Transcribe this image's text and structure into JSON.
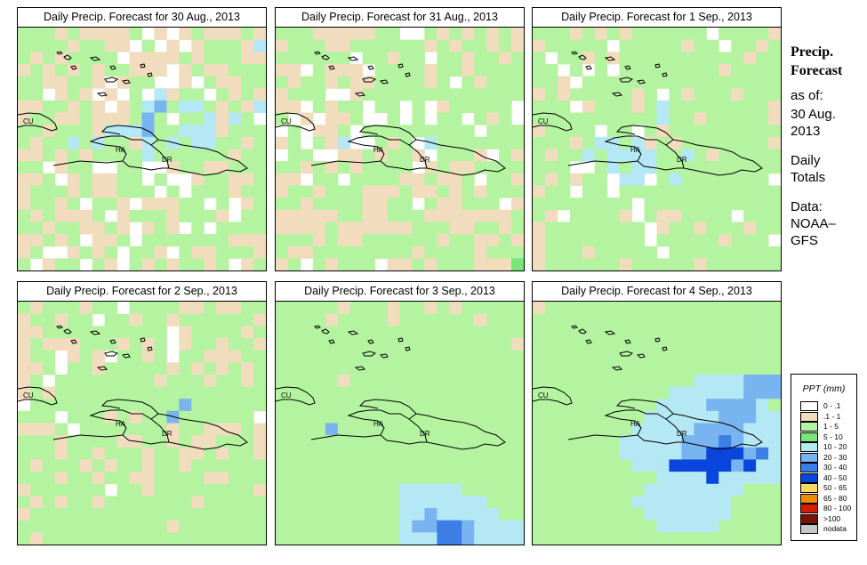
{
  "panels": [
    {
      "title": "Daily Precip. Forecast for  30 Aug., 2013"
    },
    {
      "title": "Daily Precip. Forecast for  31 Aug., 2013"
    },
    {
      "title": "Daily Precip. Forecast for  1 Sep., 2013"
    },
    {
      "title": "Daily Precip. Forecast for  2 Sep., 2013"
    },
    {
      "title": "Daily Precip. Forecast for  3 Sep., 2013"
    },
    {
      "title": "Daily Precip. Forecast for  4 Sep., 2013"
    }
  ],
  "map_labels": {
    "cuba": "CU",
    "haiti": "HA",
    "dominican_republic": "DR"
  },
  "sidebar": {
    "title_line1": "Precip.",
    "title_line2": "Forecast",
    "asof_line1": "as of:",
    "asof_line2": "30 Aug.",
    "asof_line3": "2013",
    "totals_line1": "Daily",
    "totals_line2": "Totals",
    "data_line1": "Data:",
    "data_line2": "NOAA–",
    "data_line3": "GFS"
  },
  "legend": {
    "title": "PPT (mm)",
    "items": [
      {
        "label": "0 - .1",
        "color": "#ffffff"
      },
      {
        "label": ".1 - 1",
        "color": "#f2dcbe"
      },
      {
        "label": "1 - 5",
        "color": "#b4f4a0"
      },
      {
        "label": "5 - 10",
        "color": "#78e678"
      },
      {
        "label": "10 - 20",
        "color": "#b4e8f4"
      },
      {
        "label": "20 - 30",
        "color": "#78b4f0"
      },
      {
        "label": "30 - 40",
        "color": "#3c7ee6"
      },
      {
        "label": "40 - 50",
        "color": "#0a46dc"
      },
      {
        "label": "50 - 65",
        "color": "#f4dc64"
      },
      {
        "label": "65 - 80",
        "color": "#f08c00"
      },
      {
        "label": "80 - 100",
        "color": "#d21e00"
      },
      {
        "label": ">100",
        "color": "#781400"
      },
      {
        "label": "nodata",
        "color": "#c8c8c8"
      }
    ]
  },
  "grid_patterns": [
    [
      "22212111120101211121",
      "22221221102010122214",
      "21212222011112122211",
      "12121212211101211222",
      "22112210122001021122",
      "22012101020412202121",
      "11221210124524421214",
      "12211211125202241420",
      "22122214445224441222",
      "21224242214242442212",
      "11212122224222222122",
      "22012200220012211222",
      "11201211220200122112",
      "12221211222020222122",
      "12212022101112202012",
      "21211120122212221022",
      "22122112101210202222",
      "11212011202222222111",
      "12001212022102112221",
      "20122021021212212012"
    ],
    [
      "22211111220021212121",
      "12221122222212122121",
      "22222202212202212212",
      "11021110222212212222",
      "21221211222212021222",
      "12220012222222222222",
      "11021220220201222220",
      "20101120020202202120",
      "02011202222222220222",
      "12021400212042222222",
      "02200112122102221021",
      "22121212222012112222",
      "11022022221121120221",
      "12212221112112121222",
      "22122221122021122201",
      "11111221122211111112",
      "11112111111222112212",
      "22212112222221221121",
      "21122222222122221222",
      "12021222011212221113"
    ],
    [
      "22212121222222022221",
      "12222202222212202212",
      "20221212222222222122",
      "22020202222222212222",
      "22102222222222222222",
      "12122222120212221222",
      "22201222124222222221",
      "22222222224221222221",
      "12222022021222222222",
      "22212442412122222221",
      "21224244442242122222",
      "22200242442222222222",
      "21212204402422222220",
      "12202202222222222222",
      "22222222022222222222",
      "21022221021122220222",
      "12222222201221222122",
      "12222222202222212220",
      "12221222220222222222",
      "12222221222221222222"
    ],
    [
      "21222122022221121122",
      "12212202212212222221",
      "11222222222201222212",
      "12111222121201221221",
      "12201210221202211122",
      "11202212222212121212",
      "12022222222122212212",
      "12122222222222222222",
      "02222222222225222222",
      "22202221212252222220",
      "11120222222212211121",
      "22212222112212112221",
      "22212212221221121221",
      "21222121221221222222",
      "22212212211222211222",
      "12222220221222222221",
      "21212212222222122222",
      "12222222222222222222",
      "22222222222212222222",
      "21222222222222222222"
    ],
    [
      "22222122212212122222",
      "22221222212222221222",
      "22222222222222222222",
      "22222222222222222221",
      "22222222222222222222",
      "22222222222222222222",
      "22222122222222222222",
      "22222222222222222222",
      "22222222222222222222",
      "22222222222222222222",
      "22225222222222222222",
      "22222222222222222222",
      "22222222222222222222",
      "22222222222222222222",
      "22222222222222222222",
      "22222222224444422222",
      "22222222224444444222",
      "22222222224454444422",
      "22222222224556654444",
      "22222222224446654444"
    ],
    [
      "12222222222222222222",
      "22222222222222222222",
      "22222222222222222222",
      "22222222222222222222",
      "22222222222222222222",
      "22222222222222222222",
      "22222222222224444555",
      "22222222222444444555",
      "22222222224444555542",
      "22222222244444455544",
      "22222222444445555444",
      "22222224444455565444",
      "22222224444455777564",
      "22222222444777775744",
      "22222222224444744444",
      "22222222244444444222",
      "22222222444444442222",
      "22222222244444442222",
      "22222222224444422222",
      "22222222222222222222"
    ]
  ]
}
